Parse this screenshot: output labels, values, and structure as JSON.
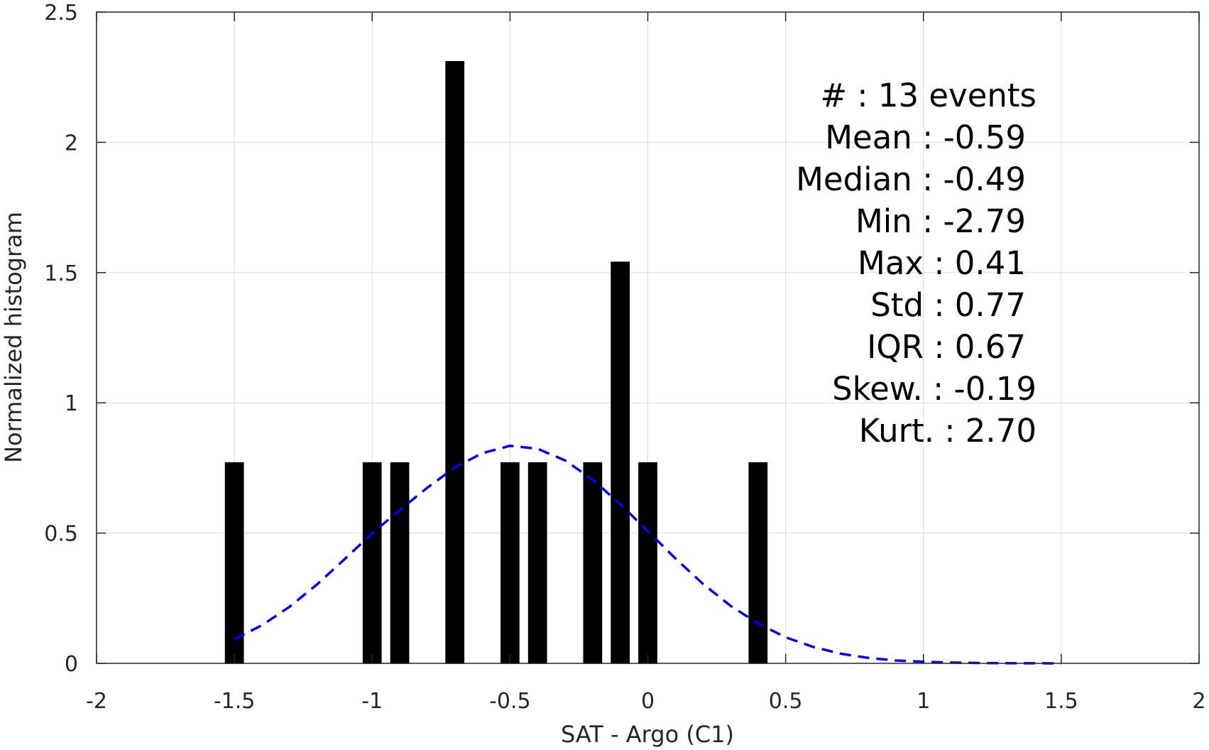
{
  "chart_data": {
    "type": "bar",
    "xlabel": "SAT - Argo (C1)",
    "ylabel": "Normalized histogram",
    "xlim": [
      -2,
      2
    ],
    "ylim": [
      0,
      2.5
    ],
    "x_ticks": [
      "-2",
      "-1.5",
      "-1",
      "-0.5",
      "0",
      "0.5",
      "1",
      "1.5",
      "2"
    ],
    "y_ticks": [
      "0",
      "0.5",
      "1",
      "1.5",
      "2",
      "2.5"
    ],
    "grid": true,
    "bar_color": "#000000",
    "bars": [
      {
        "x": -1.5,
        "value": 0.77
      },
      {
        "x": -1.0,
        "value": 0.77
      },
      {
        "x": -0.9,
        "value": 0.77
      },
      {
        "x": -0.7,
        "value": 2.31
      },
      {
        "x": -0.5,
        "value": 0.77
      },
      {
        "x": -0.4,
        "value": 0.77
      },
      {
        "x": -0.2,
        "value": 0.77
      },
      {
        "x": -0.1,
        "value": 1.54
      },
      {
        "x": 0.0,
        "value": 0.77
      },
      {
        "x": 0.4,
        "value": 0.77
      }
    ],
    "fit_curve": {
      "color": "#0000ee",
      "style": "dashed",
      "x": [
        -1.5,
        -1.4,
        -1.3,
        -1.2,
        -1.1,
        -1.0,
        -0.9,
        -0.8,
        -0.7,
        -0.6,
        -0.5,
        -0.4,
        -0.3,
        -0.2,
        -0.1,
        0.0,
        0.1,
        0.2,
        0.3,
        0.4,
        0.5,
        0.6,
        0.7,
        0.8,
        0.9,
        1.0,
        1.1,
        1.2,
        1.3,
        1.4,
        1.5
      ],
      "y": [
        0.093,
        0.146,
        0.217,
        0.303,
        0.4,
        0.499,
        0.589,
        0.674,
        0.752,
        0.807,
        0.835,
        0.824,
        0.779,
        0.705,
        0.611,
        0.508,
        0.403,
        0.305,
        0.221,
        0.153,
        0.1,
        0.063,
        0.037,
        0.021,
        0.011,
        0.006,
        0.003,
        0.0013,
        0.0006,
        0.0002,
        0.0001
      ]
    },
    "annotations": [
      "#  : 13 events",
      "Mean : -0.59",
      "Median : -0.49",
      "Min : -2.79",
      "Max : 0.41",
      "Std : 0.77",
      "IQR : 0.67",
      "Skew. : -0.19",
      "Kurt. : 2.70"
    ]
  }
}
